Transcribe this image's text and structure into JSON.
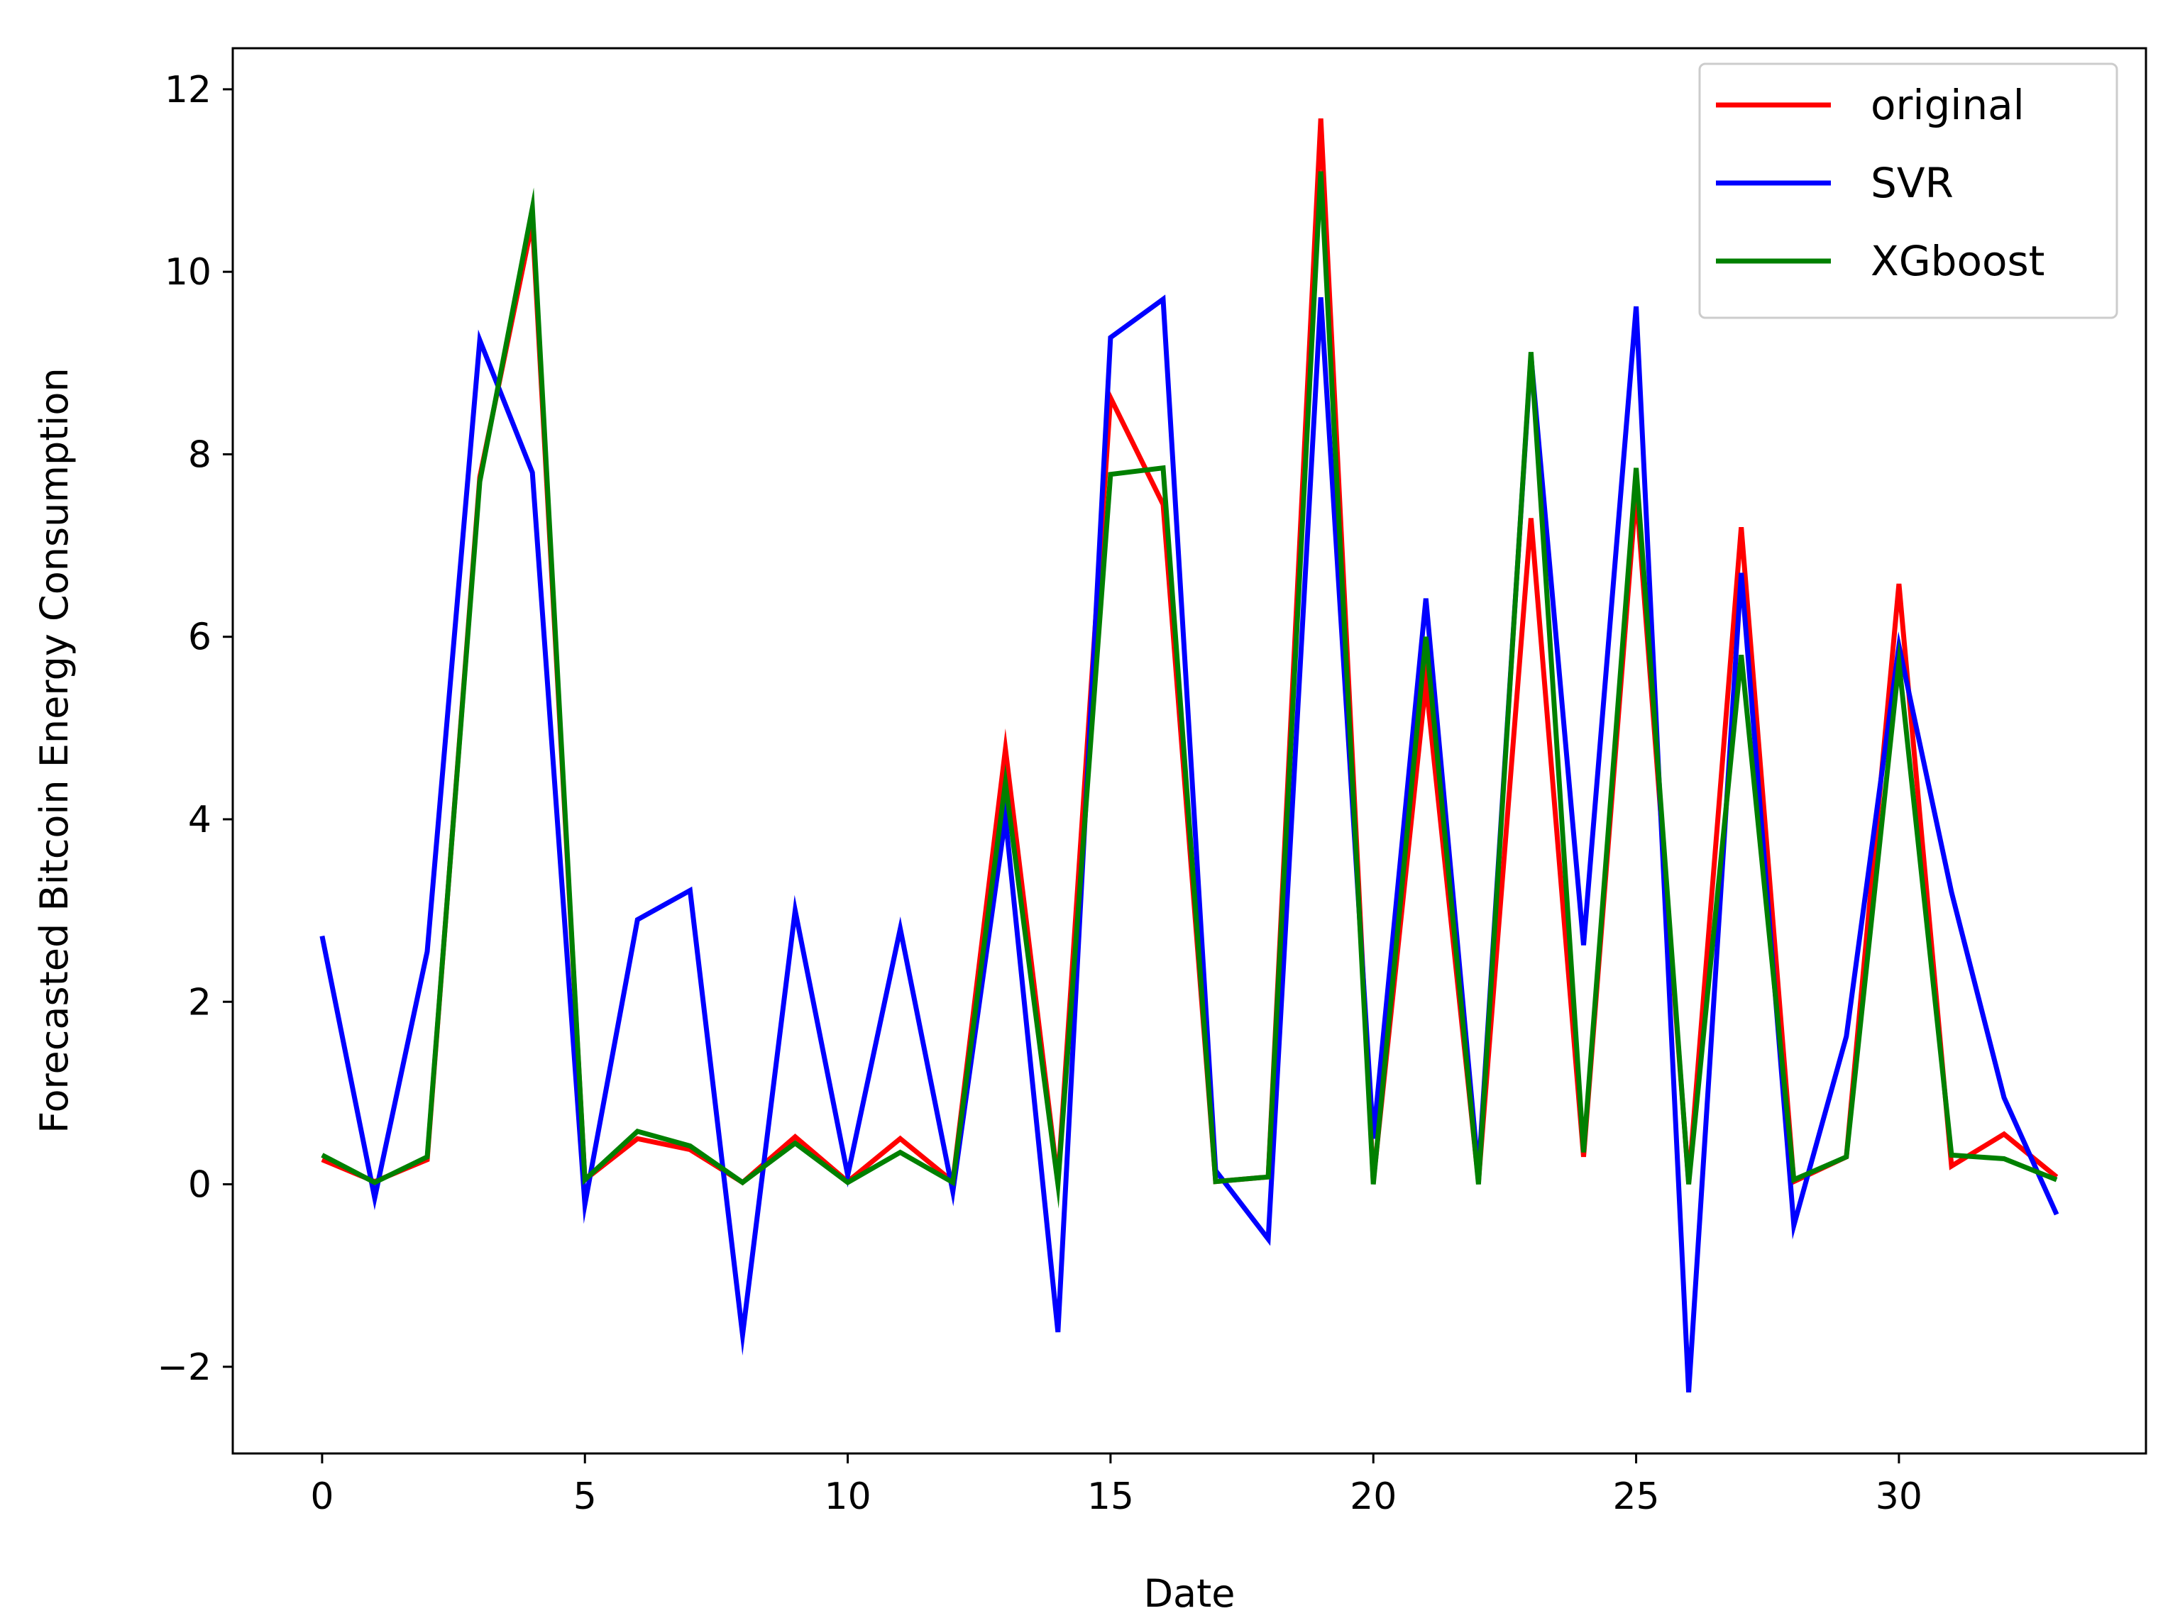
{
  "chart_data": {
    "type": "line",
    "xlabel": "Date",
    "ylabel": "Forecasted Bitcoin Energy Consumption",
    "xlim": [
      -1.7,
      34.7
    ],
    "ylim": [
      -2.95,
      12.45
    ],
    "xticks": [
      0,
      5,
      10,
      15,
      20,
      25,
      30
    ],
    "yticks": [
      -2,
      0,
      2,
      4,
      6,
      8,
      10,
      12
    ],
    "xtick_labels": [
      "0",
      "5",
      "10",
      "15",
      "20",
      "25",
      "30"
    ],
    "ytick_labels": [
      "−2",
      "0",
      "2",
      "4",
      "6",
      "8",
      "10",
      "12"
    ],
    "grid": false,
    "legend_position": "top-right",
    "x": [
      0,
      1,
      2,
      3,
      4,
      5,
      6,
      7,
      8,
      9,
      10,
      11,
      12,
      13,
      14,
      15,
      16,
      17,
      18,
      19,
      20,
      21,
      22,
      23,
      24,
      25,
      26,
      27,
      28,
      29,
      30,
      31,
      32,
      33
    ],
    "series": [
      {
        "name": "original",
        "color": "#ff0000",
        "values": [
          0.27,
          0.03,
          0.27,
          7.75,
          10.55,
          0.05,
          0.5,
          0.38,
          0.02,
          0.52,
          0.03,
          0.5,
          0.03,
          4.77,
          0.03,
          8.62,
          7.45,
          0.03,
          0.08,
          11.68,
          0.03,
          5.5,
          0.03,
          7.3,
          0.3,
          7.6,
          0.02,
          7.2,
          0.03,
          0.3,
          6.58,
          0.2,
          0.55,
          0.08
        ]
      },
      {
        "name": "SVR",
        "color": "#0000ff",
        "values": [
          2.72,
          -0.15,
          2.55,
          9.25,
          7.8,
          -0.22,
          2.9,
          3.22,
          -1.65,
          3.0,
          0.1,
          2.8,
          -0.08,
          4.02,
          -1.62,
          9.28,
          9.7,
          0.15,
          -0.6,
          9.72,
          0.5,
          6.42,
          0.12,
          9.08,
          2.62,
          9.62,
          -2.28,
          6.7,
          -0.45,
          1.62,
          5.9,
          3.2,
          0.95,
          -0.33
        ]
      },
      {
        "name": "XGboost",
        "color": "#008000",
        "values": [
          0.32,
          0.02,
          0.3,
          7.7,
          10.7,
          0.05,
          0.58,
          0.42,
          0.02,
          0.45,
          0.02,
          0.35,
          0.02,
          4.4,
          0.0,
          7.78,
          7.85,
          0.03,
          0.08,
          11.1,
          0.0,
          6.0,
          0.0,
          9.12,
          0.35,
          7.85,
          0.0,
          5.8,
          0.05,
          0.3,
          5.72,
          0.32,
          0.28,
          0.05
        ]
      }
    ]
  }
}
